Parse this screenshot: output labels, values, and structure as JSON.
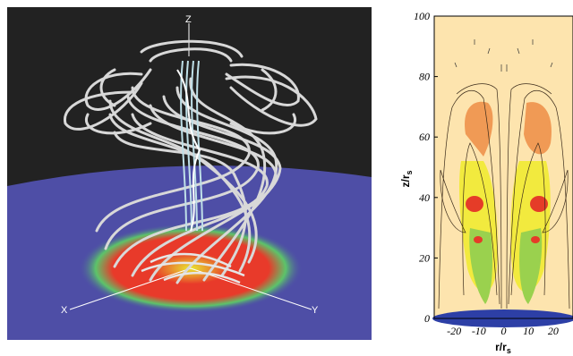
{
  "figure_a": {
    "axis_labels": {
      "z": "Z",
      "x": "X",
      "y": "Y"
    },
    "colors": {
      "sky": "#222222",
      "ground": "#4e4ea6",
      "tube": "#d8d8d8",
      "core": "#bfe0e8"
    }
  },
  "chart_data": {
    "type": "heatmap",
    "xlabel_base": "r/r",
    "xlabel_sub": "s",
    "ylabel_base": "z/r",
    "ylabel_sub": "s",
    "x_ticks": [
      "-20",
      "-10",
      "0",
      "10",
      "20"
    ],
    "y_ticks": [
      "0",
      "20",
      "40",
      "60",
      "80",
      "100"
    ],
    "xlim": [
      -28,
      28
    ],
    "ylim": [
      0,
      100
    ],
    "colors": {
      "background": "#fde4ae",
      "orange": "#f09a55",
      "yellow": "#f2ea3e",
      "green": "#9ad14e",
      "red": "#e53c28",
      "blue": "#2d3fa6"
    }
  }
}
